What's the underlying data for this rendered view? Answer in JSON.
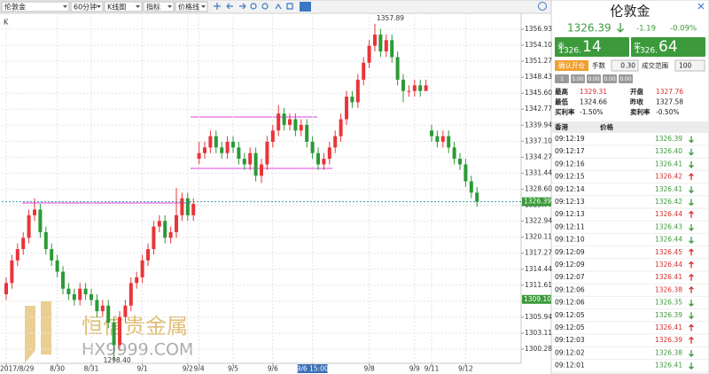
{
  "toolbar": {
    "symbol": "伦敦金",
    "period": "60分钟",
    "chart_kind": "K线图",
    "indicator": "指标",
    "price_line": "价格线"
  },
  "chart_data": {
    "type": "candlestick",
    "corner_label": "K",
    "up_color": "#e8353a",
    "down_color": "#2b9a36",
    "grid": true,
    "categories": [
      "2017/8/29",
      null,
      null,
      null,
      null,
      null,
      null,
      null,
      null,
      "8/30",
      null,
      null,
      null,
      null,
      null,
      "8/31",
      null,
      null,
      null,
      null,
      null,
      null,
      null,
      null,
      "9/1",
      null,
      null,
      null,
      null,
      null,
      null,
      null,
      "9/2",
      null,
      "9/4",
      null,
      null,
      null,
      null,
      null,
      "9/5",
      null,
      null,
      null,
      null,
      null,
      null,
      "9/6",
      null,
      null,
      null,
      null,
      null,
      null,
      "9/6 15:00",
      null,
      null,
      null,
      null,
      null,
      null,
      null,
      null,
      null,
      "9/8",
      null,
      null,
      null,
      null,
      null,
      null,
      null,
      "9/9",
      null,
      null,
      "9/11",
      null,
      null,
      null,
      null,
      null,
      "9/12",
      null,
      null
    ],
    "open": [
      1310,
      1312,
      1316,
      1318,
      1320,
      1324,
      1325,
      1321,
      1318,
      1316,
      1314,
      1311,
      1310,
      1309,
      1311,
      1310,
      1309,
      1307,
      1308,
      1305,
      1301,
      1306,
      1308,
      1312,
      1313,
      1316,
      1318,
      1322,
      1323,
      1320,
      1321,
      1324,
      1327,
      1324,
      1334,
      1335,
      1336,
      1338,
      1336,
      1335,
      1337,
      1336,
      1334,
      1333,
      1335,
      1331,
      1333,
      1337,
      1339,
      1342,
      1340,
      1341,
      1339,
      1340,
      1337,
      1335,
      1333,
      1334,
      1336,
      1338,
      1341,
      1345,
      1344,
      1348,
      1351,
      1354,
      1356,
      1353,
      1355,
      1352,
      1348,
      1346,
      1346,
      1347,
      1346,
      1339,
      1338,
      1337,
      1338,
      1336,
      1334,
      1333,
      1330,
      1328
    ],
    "high": [
      1313,
      1317,
      1319,
      1321,
      1325,
      1327,
      1326,
      1322,
      1319,
      1317,
      1315,
      1312,
      1311,
      1312,
      1312,
      1311,
      1310,
      1309,
      1309,
      1306,
      1307,
      1309,
      1313,
      1314,
      1317,
      1319,
      1323,
      1324,
      1324,
      1322,
      1328.8,
      1328,
      1328,
      1327,
      1337,
      1337,
      1339,
      1339,
      1337,
      1338,
      1338,
      1337,
      1335,
      1336,
      1336,
      1334,
      1338,
      1340,
      1343.5,
      1343,
      1342,
      1342,
      1341,
      1341,
      1338,
      1336,
      1335,
      1337,
      1339,
      1342,
      1346,
      1346,
      1349,
      1352,
      1355,
      1357.89,
      1357,
      1356,
      1356,
      1353,
      1349,
      1347,
      1348,
      1348,
      1348,
      1340,
      1339,
      1339,
      1339,
      1337,
      1335,
      1334,
      1331,
      1329
    ],
    "low": [
      1309,
      1311,
      1315,
      1317,
      1319,
      1323,
      1320,
      1317,
      1315,
      1313,
      1310,
      1309,
      1308,
      1308,
      1309,
      1308,
      1306,
      1306,
      1304,
      1298.4,
      1300,
      1305,
      1307,
      1311,
      1312,
      1315,
      1317,
      1321,
      1319,
      1319,
      1320,
      1323,
      1323,
      1323,
      1333,
      1334,
      1335,
      1335,
      1334,
      1334,
      1335,
      1333,
      1332,
      1332,
      1330,
      1329.7,
      1332,
      1336,
      1338,
      1339,
      1339,
      1338,
      1338,
      1336,
      1334,
      1332,
      1332,
      1333,
      1335,
      1337,
      1340,
      1343,
      1343,
      1347,
      1350,
      1353,
      1352,
      1352,
      1351,
      1347,
      1344,
      1345,
      1345,
      1345,
      1346,
      1337,
      1336,
      1336,
      1335,
      1333,
      1332,
      1329,
      1327,
      1325.5
    ],
    "close": [
      1312,
      1316,
      1318,
      1320,
      1324,
      1325,
      1321,
      1318,
      1316,
      1314,
      1311,
      1310,
      1309,
      1311,
      1310,
      1309,
      1307,
      1308,
      1305,
      1301,
      1306,
      1308,
      1312,
      1313,
      1316,
      1318,
      1322,
      1323,
      1320,
      1321,
      1324,
      1327,
      1324,
      1326,
      1335,
      1336,
      1338,
      1336,
      1335,
      1337,
      1336,
      1334,
      1333,
      1335,
      1331,
      1333,
      1337,
      1339,
      1342,
      1340,
      1341,
      1339,
      1340,
      1337,
      1335,
      1333,
      1334,
      1336,
      1338,
      1341,
      1345,
      1344,
      1348,
      1351,
      1354,
      1356,
      1353,
      1355,
      1352,
      1348,
      1346,
      1346,
      1347,
      1346,
      1347,
      1338,
      1337,
      1338,
      1336,
      1334,
      1333,
      1330,
      1328,
      1326.39
    ],
    "ylim": [
      1297.77,
      1358.97
    ],
    "yticks": [
      1300.28,
      1303.11,
      1305.94,
      1308.77,
      1311.61,
      1314.44,
      1317.27,
      1320.11,
      1322.94,
      1325.77,
      {
        "value": 1328.6,
        "label": "1328.60"
      },
      1331.44,
      1334.27,
      {
        "value": 1337.1,
        "label": "1337.10"
      },
      1339.94,
      1342.77,
      {
        "value": 1345.6,
        "label": "1345.60"
      },
      1348.43,
      1351.27,
      {
        "value": 1354.1,
        "label": "1354.10"
      },
      1356.93
    ],
    "price_tags": [
      {
        "value": 1326.39,
        "label": "1326.39"
      },
      {
        "value": 1309.1,
        "label": "1309.10"
      }
    ],
    "high_label": "1357.89",
    "low_label": "1298.40"
  },
  "watermark": {
    "brand": "恒信贵金属",
    "site": "HX9999.COM"
  },
  "quote": {
    "symbol": "伦敦金",
    "price": "1326.39",
    "direction": "down",
    "change": "-1.19",
    "change_pct": "-0.09%",
    "sell": {
      "label": "卖",
      "price_head": "1326.",
      "price_tail": "14"
    },
    "buy": {
      "label": "买",
      "price_head": "1326.",
      "price_tail": "64"
    },
    "confirm": "确认开仓",
    "lots_label": "手数",
    "lots": "0.30",
    "range_label": "成交范围",
    "range": "100",
    "quick": [
      "1",
      "5.00",
      "0.00",
      "0.00",
      "0.00"
    ],
    "stats": [
      [
        "最高",
        "1329.31",
        "开盘",
        "1327.76"
      ],
      [
        "最低",
        "1324.66",
        "昨收",
        "1327.58"
      ],
      [
        "买利率",
        "-1.50%",
        "卖利率",
        "-0.50%"
      ]
    ]
  },
  "ticks_table": {
    "header": [
      "香港",
      "价格"
    ],
    "rows": [
      {
        "time": "09:12:19",
        "price": "1326.39",
        "direction": "down"
      },
      {
        "time": "09:12:17",
        "price": "1326.40",
        "direction": "down"
      },
      {
        "time": "09:12:16",
        "price": "1326.41",
        "direction": "down"
      },
      {
        "time": "09:12:15",
        "price": "1326.42",
        "direction": "up"
      },
      {
        "time": "09:12:14",
        "price": "1326.41",
        "direction": "down"
      },
      {
        "time": "09:12:13",
        "price": "1326.42",
        "direction": "down"
      },
      {
        "time": "09:12:13",
        "price": "1326.44",
        "direction": "up"
      },
      {
        "time": "09:12:11",
        "price": "1326.43",
        "direction": "down"
      },
      {
        "time": "09:12:10",
        "price": "1326.44",
        "direction": "down"
      },
      {
        "time": "09:12:09",
        "price": "1326.45",
        "direction": "up"
      },
      {
        "time": "09:12:09",
        "price": "1326.44",
        "direction": "up"
      },
      {
        "time": "09:12:07",
        "price": "1326.41",
        "direction": "up"
      },
      {
        "time": "09:12:06",
        "price": "1326.38",
        "direction": "up"
      },
      {
        "time": "09:12:06",
        "price": "1326.35",
        "direction": "down"
      },
      {
        "time": "09:12:05",
        "price": "1326.39",
        "direction": "down"
      },
      {
        "time": "09:12:05",
        "price": "1326.41",
        "direction": "up"
      },
      {
        "time": "09:12:03",
        "price": "1326.39",
        "direction": "up"
      },
      {
        "time": "09:12:02",
        "price": "1326.38",
        "direction": "down"
      },
      {
        "time": "09:12:01",
        "price": "1326.41",
        "direction": "down"
      }
    ]
  }
}
